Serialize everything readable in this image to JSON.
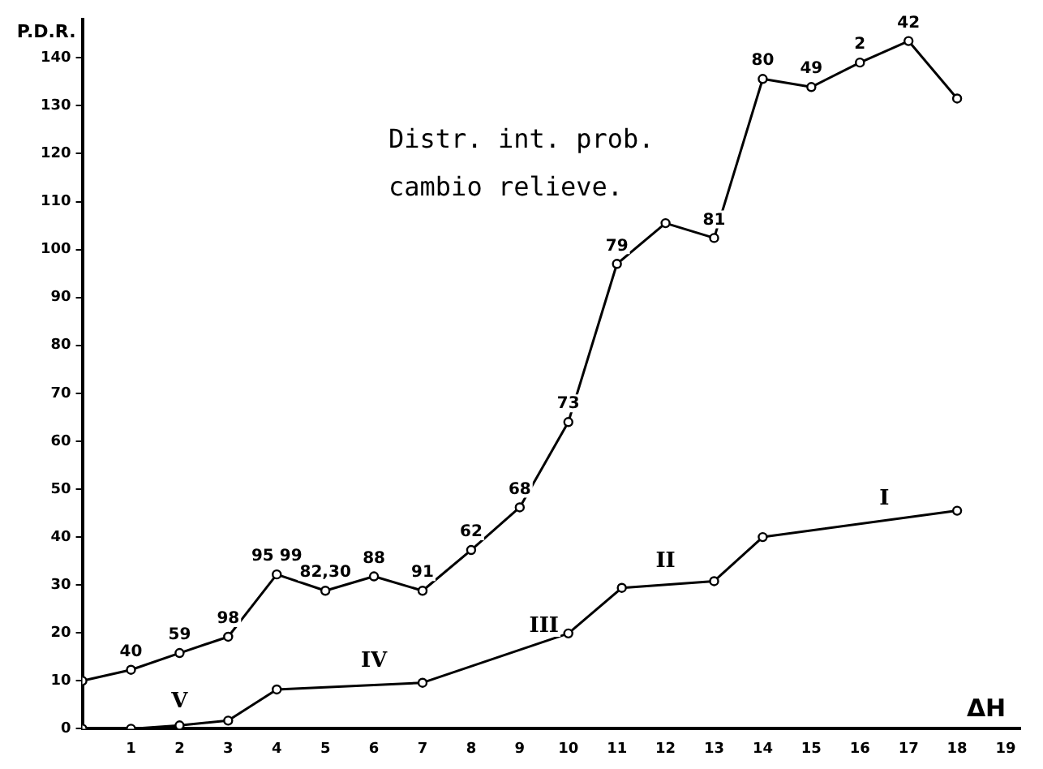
{
  "chart_data": {
    "type": "line",
    "xlabel": "ΔH",
    "ylabel": "P.D.R.",
    "xlim": [
      0,
      19.3
    ],
    "ylim": [
      0,
      148
    ],
    "xticks": [
      1,
      2,
      3,
      4,
      5,
      6,
      7,
      8,
      9,
      10,
      11,
      12,
      13,
      14,
      15,
      16,
      17,
      18,
      19
    ],
    "yticks": [
      0,
      10,
      20,
      30,
      40,
      50,
      60,
      70,
      80,
      90,
      100,
      110,
      120,
      130,
      140
    ],
    "grid": false,
    "legend": false,
    "marker": "circle",
    "line_style": "solid",
    "series": [
      {
        "color": "#000000",
        "x": [
          0,
          1,
          2,
          3,
          4,
          5,
          6,
          7,
          8,
          9,
          10,
          11,
          12,
          13,
          14,
          15,
          16,
          17,
          18
        ],
        "values": [
          10,
          12.3,
          15.8,
          19.2,
          32.2,
          28.8,
          31.8,
          28.8,
          37.3,
          46.2,
          64,
          97,
          105.5,
          102.4,
          135.6,
          133.9,
          139,
          143.5,
          131.5
        ]
      },
      {
        "color": "#000000",
        "x": [
          0,
          1,
          2,
          3,
          4,
          7,
          10,
          11.1,
          13,
          14,
          18
        ],
        "values": [
          0,
          0,
          0.7,
          1.7,
          8.2,
          9.6,
          19.9,
          29.4,
          30.8,
          40,
          45.5
        ]
      }
    ],
    "annotations": [
      "Distr. int. prob. cambio relieve.",
      {
        "text": "40",
        "x": 1,
        "y": 12.3
      },
      {
        "text": "59",
        "x": 2,
        "y": 15.8
      },
      {
        "text": "98",
        "x": 3,
        "y": 19.2
      },
      {
        "text": "95 99",
        "x": 4,
        "y": 32.2
      },
      {
        "text": "82,30",
        "x": 5,
        "y": 28.8
      },
      {
        "text": "88",
        "x": 6,
        "y": 31.8
      },
      {
        "text": "91",
        "x": 7,
        "y": 28.8
      },
      {
        "text": "62",
        "x": 8,
        "y": 37.3
      },
      {
        "text": "68",
        "x": 9,
        "y": 46.2
      },
      {
        "text": "73",
        "x": 10,
        "y": 64
      },
      {
        "text": "79",
        "x": 11,
        "y": 97
      },
      {
        "text": "81",
        "x": 13,
        "y": 102.4
      },
      {
        "text": "80",
        "x": 14,
        "y": 135.6
      },
      {
        "text": "49",
        "x": 15,
        "y": 133.9
      },
      {
        "text": "2",
        "x": 16,
        "y": 139
      },
      {
        "text": "42",
        "x": 17,
        "y": 143.5
      },
      {
        "text": "V",
        "x": 2,
        "y": 0.7
      },
      {
        "text": "IV",
        "x": 6,
        "y": 9.2
      },
      {
        "text": "III",
        "x": 9.5,
        "y": 16.5
      },
      {
        "text": "II",
        "x": 12,
        "y": 30
      },
      {
        "text": "I",
        "x": 16.5,
        "y": 43
      }
    ]
  }
}
